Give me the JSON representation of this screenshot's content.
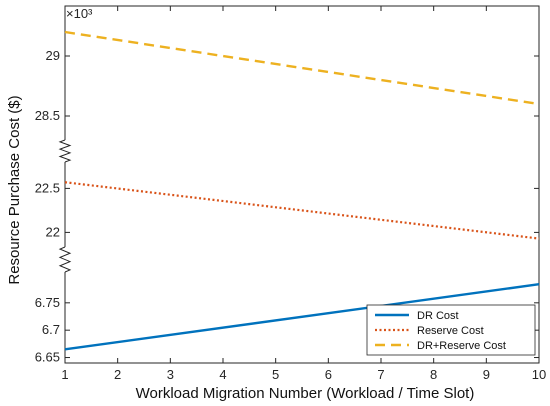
{
  "chart_data": {
    "type": "line",
    "xlabel": "Workload Migration Number (Workload / Time Slot)",
    "ylabel": "Resource Purchase Cost ($)",
    "multiplier": "×10³",
    "x": [
      1,
      10
    ],
    "xticks": [
      "1",
      "2",
      "3",
      "4",
      "5",
      "6",
      "7",
      "8",
      "9",
      "10"
    ],
    "xlim": [
      1,
      10
    ],
    "broken_y_axis": true,
    "segments": [
      {
        "name": "top",
        "ylim": [
          28.3,
          29.3
        ],
        "yticks": [
          "29",
          "28.5"
        ]
      },
      {
        "name": "middle",
        "ylim": [
          21.8,
          22.8
        ],
        "yticks": [
          "22.5",
          "22"
        ]
      },
      {
        "name": "bottom",
        "ylim": [
          6.64,
          6.81
        ],
        "yticks": [
          "6.75",
          "6.7",
          "6.65"
        ]
      }
    ],
    "series": [
      {
        "name": "DR Cost",
        "color": "#0072BD",
        "style": "solid",
        "segment": "bottom",
        "values": [
          6.665,
          6.784
        ]
      },
      {
        "name": "Reserve Cost",
        "color": "#D95319",
        "style": "dotted",
        "segment": "middle",
        "values": [
          22.57,
          21.93
        ]
      },
      {
        "name": "DR+Reserve Cost",
        "color": "#EDB120",
        "style": "dashed",
        "segment": "top",
        "values": [
          29.2,
          28.6
        ]
      }
    ],
    "legend": {
      "position": "bottom-right"
    },
    "grid": false
  }
}
